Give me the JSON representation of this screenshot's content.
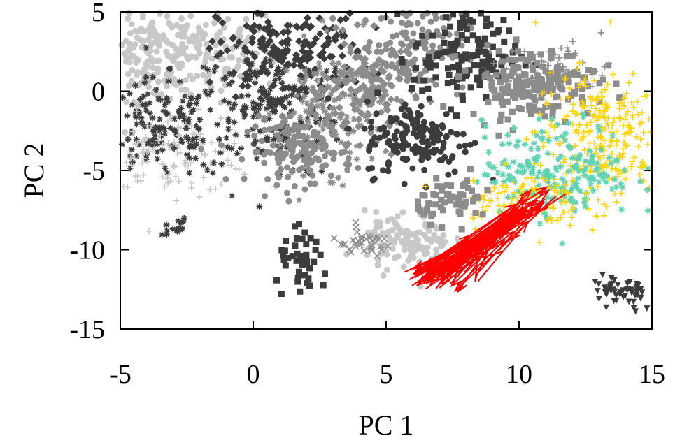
{
  "chart_data": {
    "type": "scatter",
    "title": "",
    "xlabel": "PC 1",
    "ylabel": "PC 2",
    "xlim": [
      -5,
      15
    ],
    "ylim": [
      -15,
      5
    ],
    "xticks": [
      -5,
      0,
      5,
      10,
      15
    ],
    "yticks": [
      -15,
      -10,
      -5,
      0,
      5
    ],
    "x_tick_labels": [
      "-5",
      "0",
      "5",
      "10",
      "15"
    ],
    "y_tick_labels": [
      "-15",
      "-10",
      "-5",
      "0",
      "5"
    ],
    "grid": false,
    "legend": "none",
    "colors": {
      "highlight_arrows": "#ff0000",
      "yellow_points": "#ffd400",
      "teal_points": "#5fd3b3",
      "light_gray": "#c8c8c8",
      "mid_gray": "#8c8c8c",
      "dark_gray": "#3c3c3c"
    },
    "clusters": [
      {
        "label_color": "light_gray",
        "marker": "circle",
        "center": [
          -2.5,
          2.5
        ],
        "spread": [
          1.8,
          1.6
        ],
        "n": 220
      },
      {
        "label_color": "light_gray",
        "marker": "circle",
        "center": [
          -4.0,
          2.5
        ],
        "spread": [
          0.8,
          1.5
        ],
        "n": 90
      },
      {
        "label_color": "dark_gray",
        "marker": "star",
        "center": [
          -3.5,
          -2.5
        ],
        "spread": [
          1.2,
          1.6
        ],
        "n": 140
      },
      {
        "label_color": "light_gray",
        "marker": "plus",
        "center": [
          -3.0,
          -4.0
        ],
        "spread": [
          1.6,
          1.2
        ],
        "n": 120
      },
      {
        "label_color": "dark_gray",
        "marker": "star",
        "center": [
          0.5,
          -1.0
        ],
        "spread": [
          1.4,
          2.2
        ],
        "n": 220
      },
      {
        "label_color": "dark_gray",
        "marker": "diamond",
        "center": [
          1.5,
          2.5
        ],
        "spread": [
          1.4,
          1.5
        ],
        "n": 180
      },
      {
        "label_color": "mid_gray",
        "marker": "circle",
        "center": [
          1.8,
          -3.8
        ],
        "spread": [
          1.0,
          1.0
        ],
        "n": 150
      },
      {
        "label_color": "mid_gray",
        "marker": "star",
        "center": [
          3.0,
          -1.0
        ],
        "spread": [
          1.0,
          2.0
        ],
        "n": 140
      },
      {
        "label_color": "mid_gray",
        "marker": "diamond",
        "center": [
          4.3,
          0.0
        ],
        "spread": [
          0.8,
          1.6
        ],
        "n": 130
      },
      {
        "label_color": "mid_gray",
        "marker": "circle",
        "center": [
          6.0,
          2.8
        ],
        "spread": [
          1.0,
          1.4
        ],
        "n": 140
      },
      {
        "label_color": "dark_gray",
        "marker": "square",
        "center": [
          8.0,
          2.3
        ],
        "spread": [
          1.0,
          1.6
        ],
        "n": 140
      },
      {
        "label_color": "dark_gray",
        "marker": "circle",
        "center": [
          6.2,
          -3.0
        ],
        "spread": [
          1.0,
          1.2
        ],
        "n": 160
      },
      {
        "label_color": "mid_gray",
        "marker": "square",
        "center": [
          10.5,
          0.5
        ],
        "spread": [
          1.2,
          1.1
        ],
        "n": 170
      },
      {
        "label_color": "mid_gray",
        "marker": "plus",
        "center": [
          11.5,
          1.5
        ],
        "spread": [
          1.0,
          0.8
        ],
        "n": 60
      },
      {
        "label_color": "yellow_points",
        "marker": "plus",
        "center": [
          13.0,
          -2.8
        ],
        "spread": [
          1.2,
          2.0
        ],
        "n": 260
      },
      {
        "label_color": "teal_points",
        "marker": "star",
        "center": [
          11.5,
          -5.0
        ],
        "spread": [
          1.4,
          1.5
        ],
        "n": 200
      },
      {
        "label_color": "yellow_points",
        "marker": "plus",
        "center": [
          10.0,
          -6.8
        ],
        "spread": [
          1.2,
          0.9
        ],
        "n": 110
      },
      {
        "label_color": "light_gray",
        "marker": "circle",
        "center": [
          5.8,
          -9.5
        ],
        "spread": [
          0.8,
          0.9
        ],
        "n": 120
      },
      {
        "label_color": "mid_gray",
        "marker": "square",
        "center": [
          7.6,
          -6.8
        ],
        "spread": [
          0.7,
          0.7
        ],
        "n": 60
      },
      {
        "label_color": "dark_gray",
        "marker": "square",
        "center": [
          1.9,
          -11.0
        ],
        "spread": [
          0.5,
          1.0
        ],
        "n": 45
      },
      {
        "label_color": "mid_gray",
        "marker": "cross",
        "center": [
          4.1,
          -9.6
        ],
        "spread": [
          0.6,
          0.4
        ],
        "n": 35
      },
      {
        "label_color": "dark_gray",
        "marker": "triangle-down",
        "center": [
          13.9,
          -12.8
        ],
        "spread": [
          0.6,
          0.6
        ],
        "n": 55
      },
      {
        "label_color": "dark_gray",
        "marker": "star",
        "center": [
          -3.0,
          -8.6
        ],
        "spread": [
          0.3,
          0.3
        ],
        "n": 14
      }
    ],
    "arrow_region": {
      "color": "highlight_arrows",
      "start_center": [
        7.0,
        -11.8
      ],
      "start_spread": [
        1.0,
        0.6
      ],
      "end_center": [
        9.6,
        -8.2
      ],
      "end_spread": [
        1.6,
        2.0
      ],
      "n": 75
    }
  }
}
